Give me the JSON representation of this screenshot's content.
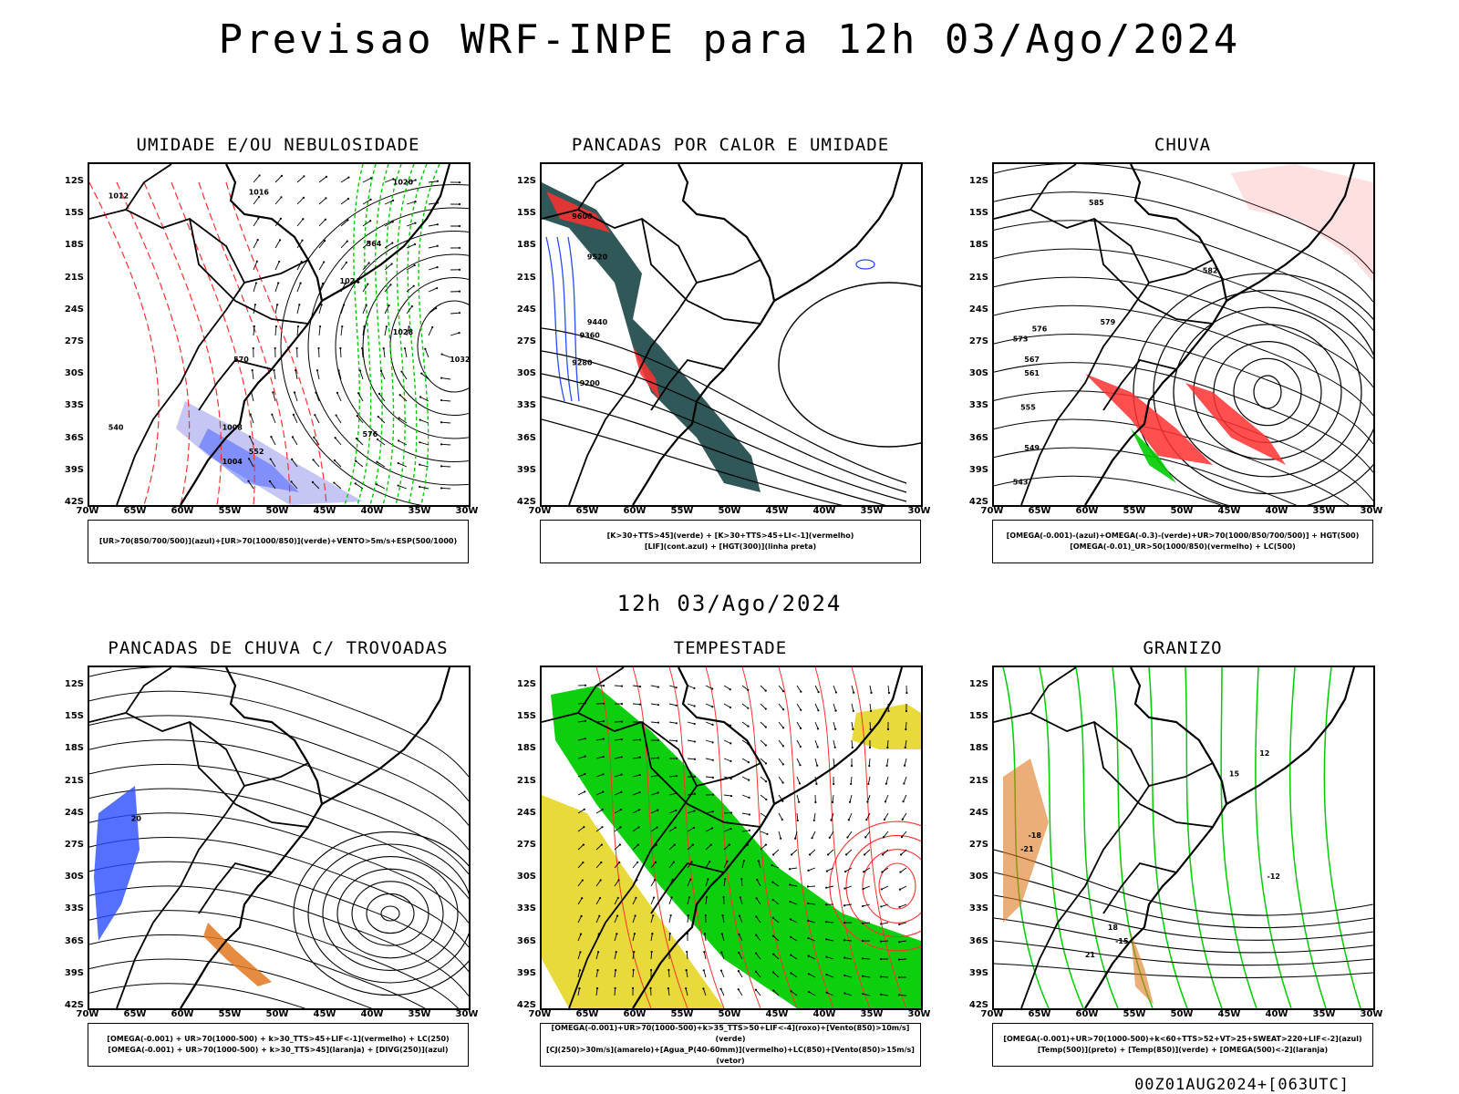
{
  "header": {
    "title": "Previsao WRF-INPE  para 12h 03/Ago/2024",
    "mid_date": "12h 03/Ago/2024",
    "footer": "00Z01AUG2024+[063UTC]"
  },
  "axes": {
    "lat_labels": [
      "12S",
      "15S",
      "18S",
      "21S",
      "24S",
      "27S",
      "30S",
      "33S",
      "36S",
      "39S",
      "42S"
    ],
    "lon_labels": [
      "70W",
      "65W",
      "60W",
      "55W",
      "50W",
      "45W",
      "40W",
      "35W",
      "30W"
    ]
  },
  "panels": [
    {
      "id": "umidade",
      "title": "UMIDADE E/OU NEBULOSIDADE",
      "legend": [
        "[UR>70(850/700/500)](azul)+[UR>70(1000/850)](verde)+VENTO>5m/s+ESP(500/1000)"
      ],
      "labels": [
        "1012",
        "1016",
        "1020",
        "1024",
        "1028",
        "1032",
        "1008",
        "1004",
        "540",
        "552",
        "564",
        "570",
        "576"
      ]
    },
    {
      "id": "pancadas-calor",
      "title": "PANCADAS POR CALOR E UMIDADE",
      "legend": [
        "[K>30+TTS>45](verde) + [K>30+TTS>45+LI<-1](vermelho)",
        "[LIF](cont.azul) + [HGT(300)](linha preta)"
      ],
      "labels": [
        "9600",
        "9520",
        "9440",
        "9360",
        "9280",
        "9200"
      ]
    },
    {
      "id": "chuva",
      "title": "CHUVA",
      "legend": [
        "[OMEGA(-0.001)-(azul)+OMEGA(-0.3)-(verde)+UR>70(1000/850/700/500)] + HGT(500)",
        "[OMEGA(-0.01)_UR>50(1000/850)(vermelho) + LC(500)"
      ],
      "labels": [
        "585",
        "582",
        "579",
        "576",
        "573",
        "567",
        "561",
        "555",
        "549",
        "543"
      ]
    },
    {
      "id": "trovoadas",
      "title": "PANCADAS DE CHUVA C/ TROVOADAS",
      "legend": [
        "[OMEGA(-0.001) + UR>70(1000-500) + k>30_TTS>45+LIF<-1](vermelho) + LC(250)",
        "[OMEGA(-0.001) + UR>70(1000-500) + k>30_TTS>45](laranja) + [DIVG(250)](azul)"
      ],
      "labels": [
        "20"
      ]
    },
    {
      "id": "tempestade",
      "title": "TEMPESTADE",
      "legend": [
        "[OMEGA(-0.001)+UR>70(1000-500)+k>35_TTS>50+LIF<-4](roxo)+[Vento(850)>10m/s](verde)",
        "[CJ(250)>30m/s](amarelo)+[Agua_P(40-60mm)](vermelho)+LC(850)+[Vento(850)>15m/s](vetor)"
      ],
      "labels": []
    },
    {
      "id": "granizo",
      "title": "GRANIZO",
      "legend": [
        "[OMEGA(-0.001)+UR>70(1000-500)+k<60+TTS>52+VT>25+SWEAT>220+LIF<-2](azul)",
        "[Temp(500)](preto) + [Temp(850)](verde) + [OMEGA(500)<-2](laranja)"
      ],
      "labels": [
        "-12",
        "-15",
        "-18",
        "-21",
        "12",
        "15",
        "18",
        "21"
      ]
    }
  ],
  "colors": {
    "blue": "#2a4bff",
    "green": "#00cc00",
    "red": "#ff3030",
    "orange": "#e07820",
    "yellow": "#e8d830",
    "teal": "#1f4a4a",
    "lavender": "#a0a0ee",
    "black": "#000000"
  }
}
